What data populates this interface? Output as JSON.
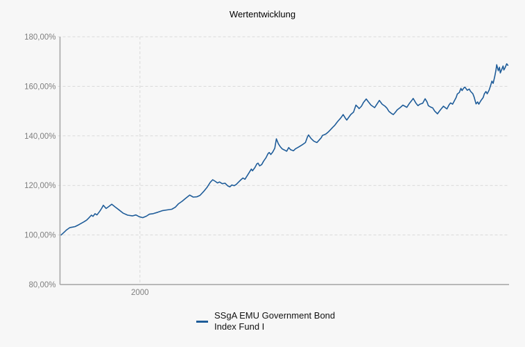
{
  "chart": {
    "title": "Wertentwicklung",
    "legend": {
      "label": "SSgA EMU Government Bond Index Fund I"
    }
  },
  "colors": {
    "line": "#1e5c99",
    "axis": "#a3a3a3",
    "grid": "#d9d9d9",
    "tick_text": "#7f7f7f",
    "background": "#f7f7f7"
  },
  "chart_data": {
    "type": "line",
    "title": "Wertentwicklung",
    "xlabel": "",
    "ylabel": "",
    "xlim": [
      1997.99,
      2009.28
    ],
    "ylim": [
      80,
      180
    ],
    "grid": "dashed",
    "legend_position": "bottom",
    "y_ticks": [
      {
        "value": 180,
        "label": "180,00%"
      },
      {
        "value": 160,
        "label": "160,00%"
      },
      {
        "value": 140,
        "label": "140,00%"
      },
      {
        "value": 120,
        "label": "120,00%"
      },
      {
        "value": 100,
        "label": "100,00%"
      },
      {
        "value": 80,
        "label": "80,00%"
      }
    ],
    "x_ticks": [
      {
        "value": 2000,
        "label": "2000"
      }
    ],
    "series": [
      {
        "name": "SSgA EMU Government Bond Index Fund I",
        "color": "#1e5c99",
        "points": [
          [
            1998.02,
            100.0
          ],
          [
            1998.1,
            101.2
          ],
          [
            1998.16,
            102.1
          ],
          [
            1998.24,
            103.0
          ],
          [
            1998.31,
            103.2
          ],
          [
            1998.37,
            103.4
          ],
          [
            1998.47,
            104.2
          ],
          [
            1998.59,
            105.3
          ],
          [
            1998.66,
            106.0
          ],
          [
            1998.71,
            106.8
          ],
          [
            1998.78,
            108.0
          ],
          [
            1998.82,
            107.5
          ],
          [
            1998.87,
            108.6
          ],
          [
            1998.92,
            108.1
          ],
          [
            1998.99,
            109.6
          ],
          [
            1999.04,
            110.8
          ],
          [
            1999.08,
            112.0
          ],
          [
            1999.15,
            110.7
          ],
          [
            1999.22,
            111.5
          ],
          [
            1999.29,
            112.4
          ],
          [
            1999.37,
            111.4
          ],
          [
            1999.46,
            110.3
          ],
          [
            1999.58,
            108.8
          ],
          [
            1999.69,
            108.0
          ],
          [
            1999.81,
            107.7
          ],
          [
            1999.9,
            108.1
          ],
          [
            1999.98,
            107.4
          ],
          [
            2000.07,
            107.0
          ],
          [
            2000.16,
            107.6
          ],
          [
            2000.24,
            108.4
          ],
          [
            2000.33,
            108.6
          ],
          [
            2000.45,
            109.2
          ],
          [
            2000.56,
            109.8
          ],
          [
            2000.68,
            110.1
          ],
          [
            2000.8,
            110.4
          ],
          [
            2000.89,
            111.2
          ],
          [
            2000.97,
            112.6
          ],
          [
            2001.06,
            113.6
          ],
          [
            2001.15,
            114.8
          ],
          [
            2001.25,
            116.1
          ],
          [
            2001.34,
            115.3
          ],
          [
            2001.43,
            115.4
          ],
          [
            2001.51,
            116.0
          ],
          [
            2001.6,
            117.5
          ],
          [
            2001.69,
            119.3
          ],
          [
            2001.77,
            121.3
          ],
          [
            2001.83,
            122.3
          ],
          [
            2001.9,
            121.6
          ],
          [
            2001.95,
            121.0
          ],
          [
            2002.0,
            121.4
          ],
          [
            2002.07,
            120.7
          ],
          [
            2002.14,
            120.9
          ],
          [
            2002.21,
            119.8
          ],
          [
            2002.26,
            119.4
          ],
          [
            2002.31,
            120.2
          ],
          [
            2002.37,
            119.9
          ],
          [
            2002.42,
            120.4
          ],
          [
            2002.47,
            121.2
          ],
          [
            2002.54,
            122.3
          ],
          [
            2002.59,
            123.0
          ],
          [
            2002.64,
            122.5
          ],
          [
            2002.7,
            124.0
          ],
          [
            2002.75,
            125.3
          ],
          [
            2002.8,
            126.6
          ],
          [
            2002.83,
            125.9
          ],
          [
            2002.89,
            127.2
          ],
          [
            2002.94,
            128.7
          ],
          [
            2002.97,
            129.0
          ],
          [
            2003.01,
            127.9
          ],
          [
            2003.06,
            128.4
          ],
          [
            2003.11,
            129.8
          ],
          [
            2003.17,
            131.2
          ],
          [
            2003.22,
            132.8
          ],
          [
            2003.25,
            133.3
          ],
          [
            2003.29,
            132.5
          ],
          [
            2003.34,
            133.5
          ],
          [
            2003.39,
            135.0
          ],
          [
            2003.43,
            138.8
          ],
          [
            2003.48,
            136.8
          ],
          [
            2003.53,
            135.6
          ],
          [
            2003.58,
            134.7
          ],
          [
            2003.63,
            134.3
          ],
          [
            2003.69,
            133.8
          ],
          [
            2003.74,
            135.3
          ],
          [
            2003.79,
            134.4
          ],
          [
            2003.86,
            134.0
          ],
          [
            2003.91,
            134.8
          ],
          [
            2003.98,
            135.4
          ],
          [
            2004.03,
            135.9
          ],
          [
            2004.1,
            136.6
          ],
          [
            2004.16,
            137.3
          ],
          [
            2004.21,
            139.5
          ],
          [
            2004.24,
            140.4
          ],
          [
            2004.3,
            139.0
          ],
          [
            2004.37,
            137.9
          ],
          [
            2004.42,
            137.5
          ],
          [
            2004.45,
            137.3
          ],
          [
            2004.5,
            138.2
          ],
          [
            2004.56,
            139.3
          ],
          [
            2004.59,
            140.2
          ],
          [
            2004.64,
            140.5
          ],
          [
            2004.68,
            140.8
          ],
          [
            2004.73,
            141.5
          ],
          [
            2004.78,
            142.3
          ],
          [
            2004.85,
            143.5
          ],
          [
            2004.9,
            144.3
          ],
          [
            2004.97,
            145.8
          ],
          [
            2005.03,
            146.9
          ],
          [
            2005.08,
            147.9
          ],
          [
            2005.11,
            148.6
          ],
          [
            2005.17,
            147.0
          ],
          [
            2005.2,
            146.4
          ],
          [
            2005.25,
            147.5
          ],
          [
            2005.3,
            148.6
          ],
          [
            2005.37,
            149.6
          ],
          [
            2005.43,
            152.4
          ],
          [
            2005.48,
            151.6
          ],
          [
            2005.51,
            151.0
          ],
          [
            2005.57,
            152.0
          ],
          [
            2005.62,
            153.5
          ],
          [
            2005.69,
            154.9
          ],
          [
            2005.74,
            153.8
          ],
          [
            2005.81,
            152.4
          ],
          [
            2005.9,
            151.4
          ],
          [
            2005.95,
            152.6
          ],
          [
            2006.02,
            154.3
          ],
          [
            2006.09,
            152.8
          ],
          [
            2006.16,
            152.0
          ],
          [
            2006.21,
            151.2
          ],
          [
            2006.26,
            149.9
          ],
          [
            2006.33,
            149.0
          ],
          [
            2006.37,
            148.6
          ],
          [
            2006.42,
            149.5
          ],
          [
            2006.47,
            150.5
          ],
          [
            2006.54,
            151.4
          ],
          [
            2006.61,
            152.4
          ],
          [
            2006.66,
            152.0
          ],
          [
            2006.71,
            151.5
          ],
          [
            2006.77,
            153.0
          ],
          [
            2006.82,
            154.0
          ],
          [
            2006.87,
            155.1
          ],
          [
            2006.94,
            153.2
          ],
          [
            2006.99,
            152.2
          ],
          [
            2007.04,
            152.8
          ],
          [
            2007.11,
            153.2
          ],
          [
            2007.17,
            155.0
          ],
          [
            2007.22,
            153.6
          ],
          [
            2007.25,
            152.2
          ],
          [
            2007.3,
            151.7
          ],
          [
            2007.36,
            151.3
          ],
          [
            2007.41,
            150.0
          ],
          [
            2007.48,
            148.9
          ],
          [
            2007.53,
            150.0
          ],
          [
            2007.58,
            151.0
          ],
          [
            2007.63,
            152.0
          ],
          [
            2007.69,
            151.2
          ],
          [
            2007.72,
            150.9
          ],
          [
            2007.77,
            152.5
          ],
          [
            2007.81,
            153.3
          ],
          [
            2007.86,
            152.8
          ],
          [
            2007.9,
            154.0
          ],
          [
            2007.95,
            155.5
          ],
          [
            2007.98,
            156.9
          ],
          [
            2008.03,
            157.5
          ],
          [
            2008.07,
            159.2
          ],
          [
            2008.1,
            158.3
          ],
          [
            2008.14,
            159.3
          ],
          [
            2008.17,
            159.7
          ],
          [
            2008.23,
            158.4
          ],
          [
            2008.28,
            158.9
          ],
          [
            2008.31,
            158.0
          ],
          [
            2008.37,
            157.0
          ],
          [
            2008.4,
            155.8
          ],
          [
            2008.45,
            152.9
          ],
          [
            2008.49,
            153.7
          ],
          [
            2008.52,
            152.8
          ],
          [
            2008.57,
            154.2
          ],
          [
            2008.63,
            155.5
          ],
          [
            2008.66,
            157.0
          ],
          [
            2008.7,
            157.9
          ],
          [
            2008.73,
            157.0
          ],
          [
            2008.78,
            158.5
          ],
          [
            2008.82,
            160.5
          ],
          [
            2008.85,
            162.1
          ],
          [
            2008.88,
            161.2
          ],
          [
            2008.92,
            164.0
          ],
          [
            2008.95,
            166.5
          ],
          [
            2008.97,
            168.7
          ],
          [
            2009.01,
            166.3
          ],
          [
            2009.04,
            167.7
          ],
          [
            2009.06,
            165.4
          ],
          [
            2009.1,
            167.0
          ],
          [
            2009.13,
            168.2
          ],
          [
            2009.15,
            166.6
          ],
          [
            2009.18,
            167.5
          ],
          [
            2009.22,
            169.1
          ],
          [
            2009.25,
            168.5
          ]
        ]
      }
    ]
  }
}
